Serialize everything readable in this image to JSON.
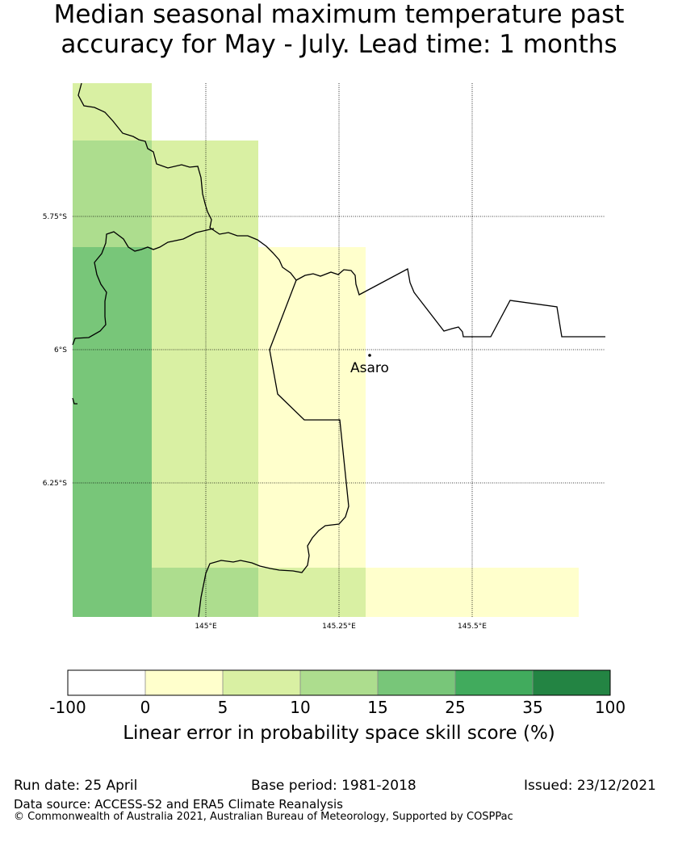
{
  "title": {
    "line1": "Median seasonal maximum temperature past",
    "line2": "accuracy for May - July. Lead time: 1 months"
  },
  "map": {
    "location_label": "Asaro",
    "lat_labels": [
      "5.75°S",
      "6°S",
      "6.25°S"
    ],
    "lon_labels": [
      "145°E",
      "145.25°E",
      "145.5°E"
    ],
    "colors": {
      "lt0": "#ffffff",
      "c0_5": "#ffffcc",
      "c5_10": "#d9f0a3",
      "c10_15": "#addd8e",
      "c15_25": "#78c679",
      "c25_35": "#41ab5d",
      "c35_100": "#238443"
    }
  },
  "colorbar": {
    "ticks": [
      "-100",
      "0",
      "5",
      "10",
      "15",
      "25",
      "35",
      "100"
    ],
    "colors": [
      "#ffffff",
      "#ffffcc",
      "#d9f0a3",
      "#addd8e",
      "#78c679",
      "#41ab5d",
      "#238443"
    ],
    "label": "Linear error in probability space skill score (%)"
  },
  "footer": {
    "run_date": "Run date: 25 April",
    "base_period": "Base period: 1981-2018",
    "issued": "Issued: 23/12/2021",
    "data_source": "Data source: ACCESS-S2 and ERA5 Climate Reanalysis",
    "copyright": "© Commonwealth of Australia 2021, Australian Bureau of Meteorology, Supported by COSPPac"
  }
}
